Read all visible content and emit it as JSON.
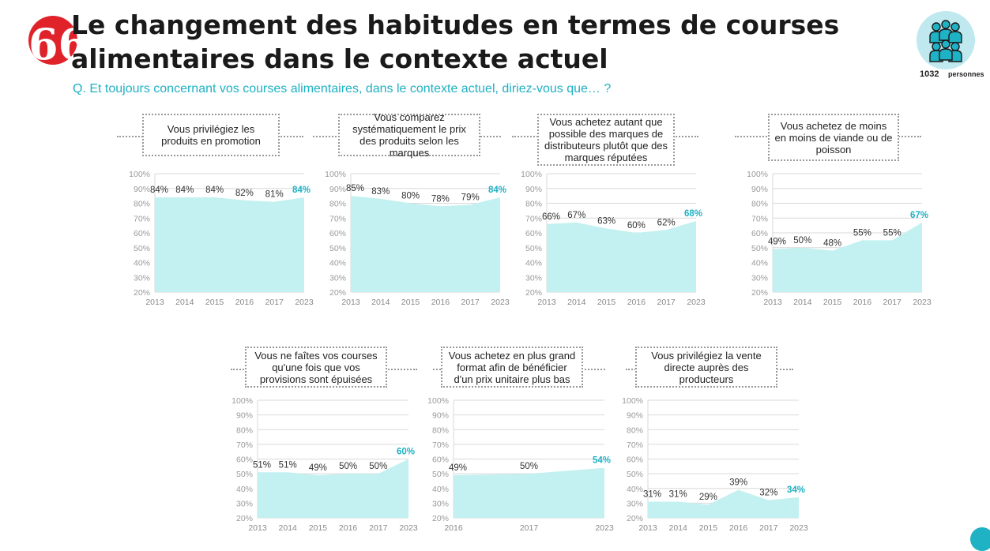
{
  "header": {
    "title": "Le changement des habitudes en termes de courses alimentaires dans le contexte actuel",
    "question": "Q. Et toujours concernant vos courses alimentaires, dans le contexte actuel, diriez-vous que… ?",
    "sample_count": "1032",
    "sample_label": "personnes"
  },
  "colors": {
    "accent": "#1fb1c4",
    "fill": "#c3f0f0",
    "brand_red": "#e0232b"
  },
  "chart_data": [
    {
      "type": "area",
      "title": "Vous privilégiez les produits en promotion",
      "categories": [
        "2013",
        "2014",
        "2015",
        "2016",
        "2017",
        "2023"
      ],
      "values": [
        84,
        84,
        84,
        82,
        81,
        84
      ],
      "value_labels": [
        "84%",
        "84%",
        "84%",
        "82%",
        "81%",
        "84%"
      ],
      "yticks": [
        "20%",
        "30%",
        "40%",
        "50%",
        "60%",
        "70%",
        "80%",
        "90%",
        "100%"
      ],
      "ylim": [
        20,
        100
      ]
    },
    {
      "type": "area",
      "title": "Vous comparez systématiquement le prix des produits selon les marques",
      "categories": [
        "2013",
        "2014",
        "2015",
        "2016",
        "2017",
        "2023"
      ],
      "values": [
        85,
        83,
        80,
        78,
        79,
        84
      ],
      "value_labels": [
        "85%",
        "83%",
        "80%",
        "78%",
        "79%",
        "84%"
      ],
      "yticks": [
        "20%",
        "30%",
        "40%",
        "50%",
        "60%",
        "70%",
        "80%",
        "90%",
        "100%"
      ],
      "ylim": [
        20,
        100
      ]
    },
    {
      "type": "area",
      "title": "Vous achetez autant que possible des marques de distributeurs plutôt que des marques réputées",
      "categories": [
        "2013",
        "2014",
        "2015",
        "2016",
        "2017",
        "2023"
      ],
      "values": [
        66,
        67,
        63,
        60,
        62,
        68
      ],
      "value_labels": [
        "66%",
        "67%",
        "63%",
        "60%",
        "62%",
        "68%"
      ],
      "yticks": [
        "20%",
        "30%",
        "40%",
        "50%",
        "60%",
        "70%",
        "80%",
        "90%",
        "100%"
      ],
      "ylim": [
        20,
        100
      ]
    },
    {
      "type": "area",
      "title": "Vous achetez de moins en moins de viande ou de poisson",
      "categories": [
        "2013",
        "2014",
        "2015",
        "2016",
        "2017",
        "2023"
      ],
      "values": [
        49,
        50,
        48,
        55,
        55,
        67
      ],
      "value_labels": [
        "49%",
        "50%",
        "48%",
        "55%",
        "55%",
        "67%"
      ],
      "yticks": [
        "20%",
        "30%",
        "40%",
        "50%",
        "60%",
        "70%",
        "80%",
        "90%",
        "100%"
      ],
      "ylim": [
        20,
        100
      ]
    },
    {
      "type": "area",
      "title": "Vous ne faîtes vos courses qu'une fois que vos provisions sont épuisées",
      "categories": [
        "2013",
        "2014",
        "2015",
        "2016",
        "2017",
        "2023"
      ],
      "values": [
        51,
        51,
        49,
        50,
        50,
        60
      ],
      "value_labels": [
        "51%",
        "51%",
        "49%",
        "50%",
        "50%",
        "60%"
      ],
      "yticks": [
        "20%",
        "30%",
        "40%",
        "50%",
        "60%",
        "70%",
        "80%",
        "90%",
        "100%"
      ],
      "ylim": [
        20,
        100
      ]
    },
    {
      "type": "area",
      "title": "Vous achetez en plus grand format afin de bénéficier d'un prix unitaire plus bas",
      "categories": [
        "2016",
        "2017",
        "2023"
      ],
      "values": [
        49,
        50,
        54
      ],
      "value_labels": [
        "49%",
        "50%",
        "54%"
      ],
      "yticks": [
        "20%",
        "30%",
        "40%",
        "50%",
        "60%",
        "70%",
        "80%",
        "90%",
        "100%"
      ],
      "ylim": [
        20,
        100
      ]
    },
    {
      "type": "area",
      "title": "Vous privilégiez la vente directe auprès des producteurs",
      "categories": [
        "2013",
        "2014",
        "2015",
        "2016",
        "2017",
        "2023"
      ],
      "values": [
        31,
        31,
        29,
        39,
        32,
        34
      ],
      "value_labels": [
        "31%",
        "31%",
        "29%",
        "39%",
        "32%",
        "34%"
      ],
      "yticks": [
        "20%",
        "30%",
        "40%",
        "50%",
        "60%",
        "70%",
        "80%",
        "90%",
        "100%"
      ],
      "ylim": [
        20,
        100
      ]
    }
  ]
}
